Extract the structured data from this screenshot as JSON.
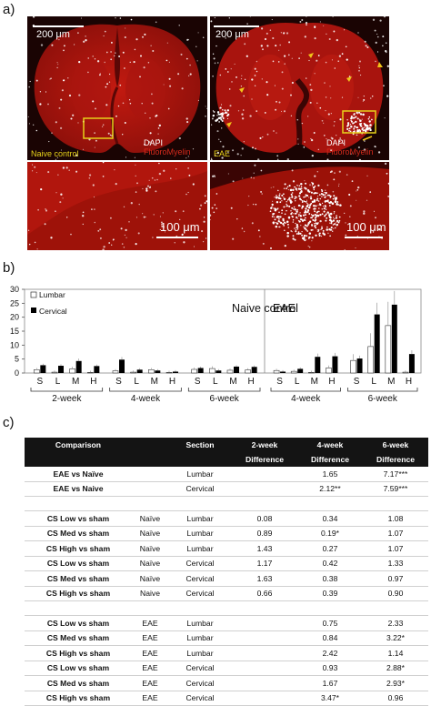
{
  "panel_labels": {
    "a": "a)",
    "b": "b)",
    "c": "c)"
  },
  "panel_a": {
    "top_left": {
      "scale": "200 μm",
      "group": "Naive control",
      "stain1": "DAPI",
      "stain2": "FluoroMyelin"
    },
    "top_right": {
      "scale": "200 μm",
      "group": "EAE",
      "stain1": "DAPI",
      "stain2": "FluoroMyelin"
    },
    "bottom_left": {
      "scale": "100 μm"
    },
    "bottom_right": {
      "scale": "100 μm"
    },
    "colors": {
      "tissue": "#b8160f",
      "highlight_box": "#e6d21a",
      "arrow": "#f0c419",
      "dapi": "#ffffff"
    }
  },
  "chart_data": {
    "type": "bar",
    "ylim": [
      0,
      30
    ],
    "yticks": [
      0,
      5,
      10,
      15,
      20,
      25,
      30
    ],
    "legend": [
      {
        "name": "Lumbar",
        "color": "#ffffff"
      },
      {
        "name": "Cervical",
        "color": "#000000"
      }
    ],
    "legend_position": "top-left",
    "groups": [
      {
        "name": "Naive control",
        "subgroups": [
          {
            "name": "2-week",
            "categories": [
              "S",
              "L",
              "M",
              "H"
            ],
            "lumbar": [
              1.2,
              0.3,
              1.5,
              0.2
            ],
            "cervical": [
              2.8,
              2.6,
              4.3,
              2.5
            ]
          },
          {
            "name": "4-week",
            "categories": [
              "S",
              "L",
              "M",
              "H"
            ],
            "lumbar": [
              0.8,
              0.3,
              1.2,
              0.2
            ],
            "cervical": [
              4.8,
              1.2,
              0.9,
              0.5
            ]
          },
          {
            "name": "6-week",
            "categories": [
              "S",
              "L",
              "M",
              "H"
            ],
            "lumbar": [
              1.3,
              1.6,
              1.0,
              1.1
            ],
            "cervical": [
              1.8,
              0.9,
              2.3,
              2.2
            ]
          }
        ]
      },
      {
        "name": "EAE",
        "subgroups": [
          {
            "name": "4-week",
            "categories": [
              "S",
              "L",
              "M",
              "H"
            ],
            "lumbar": [
              0.9,
              0.6,
              0.2,
              1.8
            ],
            "cervical": [
              0.5,
              1.5,
              5.8,
              6.0
            ]
          },
          {
            "name": "6-week",
            "categories": [
              "S",
              "L",
              "M",
              "H"
            ],
            "lumbar": [
              4.5,
              9.5,
              17.0,
              0.3
            ],
            "cervical": [
              5.2,
              21.0,
              24.5,
              6.8
            ]
          }
        ]
      }
    ]
  },
  "table": {
    "headers": {
      "comparison": "Comparison",
      "section": "Section",
      "w2": "2-week",
      "w4": "4-week",
      "w6": "6-week",
      "diff": "Difference"
    },
    "rows": [
      {
        "comparison": "EAE vs Naïve",
        "group": "",
        "section": "Lumbar",
        "w2": "",
        "w4": "1.65",
        "w6": "7.17***"
      },
      {
        "comparison": "EAE vs Naive",
        "group": "",
        "section": "Cervical",
        "w2": "",
        "w4": "2.12**",
        "w6": "7.59***"
      }
    ],
    "rows_naive": [
      {
        "comparison": "CS Low vs sham",
        "group": "Naïve",
        "section": "Lumbar",
        "w2": "0.08",
        "w4": "0.34",
        "w6": "1.08"
      },
      {
        "comparison": "CS Med vs sham",
        "group": "Naïve",
        "section": "Lumbar",
        "w2": "0.89",
        "w4": "0.19*",
        "w6": "1.07"
      },
      {
        "comparison": "CS High vs sham",
        "group": "Naïve",
        "section": "Lumbar",
        "w2": "1.43",
        "w4": "0.27",
        "w6": "1.07"
      },
      {
        "comparison": "CS Low vs sham",
        "group": "Naïve",
        "section": "Cervical",
        "w2": "1.17",
        "w4": "0.42",
        "w6": "1.33"
      },
      {
        "comparison": "CS Med vs sham",
        "group": "Naïve",
        "section": "Cervical",
        "w2": "1.63",
        "w4": "0.38",
        "w6": "0.97"
      },
      {
        "comparison": "CS High vs sham",
        "group": "Naive",
        "section": "Cervical",
        "w2": "0.66",
        "w4": "0.39",
        "w6": "0.90"
      }
    ],
    "rows_eae": [
      {
        "comparison": "CS Low vs sham",
        "group": "EAE",
        "section": "Lumbar",
        "w2": "",
        "w4": "0.75",
        "w6": "2.33"
      },
      {
        "comparison": "CS Med vs sham",
        "group": "EAE",
        "section": "Lumbar",
        "w2": "",
        "w4": "0.84",
        "w6": "3.22*"
      },
      {
        "comparison": "CS High vs sham",
        "group": "EAE",
        "section": "Lumbar",
        "w2": "",
        "w4": "2.42",
        "w6": "1.14"
      },
      {
        "comparison": "CS Low vs sham",
        "group": "EAE",
        "section": "Cervical",
        "w2": "",
        "w4": "0.93",
        "w6": "2.88*"
      },
      {
        "comparison": "CS Med vs sham",
        "group": "EAE",
        "section": "Cervical",
        "w2": "",
        "w4": "1.67",
        "w6": "2.93*"
      },
      {
        "comparison": "CS High vs sham",
        "group": "EAE",
        "section": "Cervical",
        "w2": "",
        "w4": "3.47*",
        "w6": "0.96"
      }
    ]
  }
}
